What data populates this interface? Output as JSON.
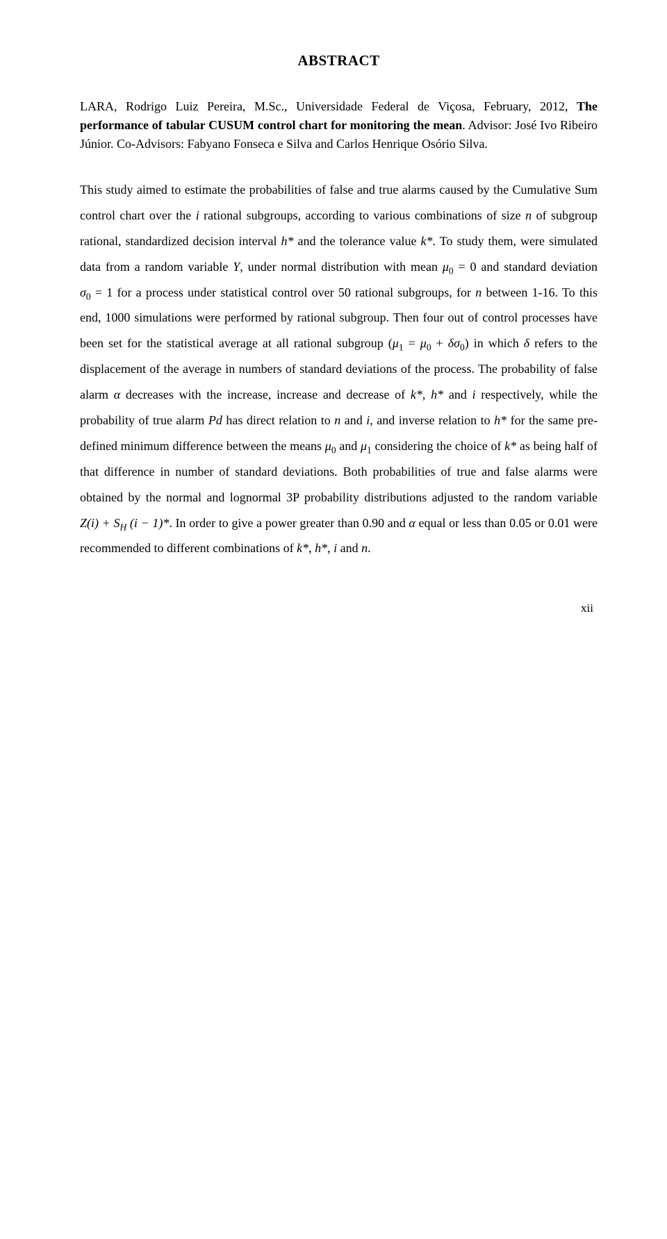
{
  "title": "ABSTRACT",
  "citation": {
    "author": "LARA, Rodrigo Luiz Pereira, M.Sc., Universidade Federal de Viçosa, February, 2012, ",
    "work_title": "The performance of tabular CUSUM control chart for monitoring the mean",
    "advisors": ". Advisor: José Ivo Ribeiro Júnior. Co-Advisors: Fabyano Fonseca e Silva and Carlos Henrique Osório Silva."
  },
  "para": {
    "t1": "This study aimed to estimate the probabilities of false and true alarms caused by the Cumulative Sum control chart over the ",
    "i": "i",
    "t2": " rational subgroups, according to various combinations of size ",
    "n": "n",
    "t3": " of subgroup rational, standardized decision interval ",
    "hstar": "h*",
    "t4": " and the tolerance value ",
    "kstar": "k*",
    "t5": ". To study them, were simulated data from a random variable ",
    "Y": "Y",
    "t6": ", under normal distribution with mean ",
    "mu0_eq": "μ",
    "mu0_sub": "0",
    "mu0_rhs": " = 0",
    "t7": " and standard deviation ",
    "sig0_eq": "σ",
    "sig0_sub": "0",
    "sig0_rhs": " = 1",
    "t8": " for a process under statistical control over 50 rational subgroups, for ",
    "t9": " between 1-16. To this end, 1000 simulations were performed by rational subgroup. Then four out of control processes have been set for the statistical average at all rational subgroup (",
    "mu1": "μ",
    "mu1_sub": "1",
    "eq": " = ",
    "mu0b": "μ",
    "mu0b_sub": "0",
    "plus": " + ",
    "delta_sig": "δσ",
    "delta_sig_sub": "0",
    "t10": ") in which ",
    "delta": "δ",
    "t11": " refers to the displacement of the average in numbers of standard deviations of the process. The probability of false alarm ",
    "alpha": "α",
    "t12": " decreases with the increase, increase and decrease of  ",
    "t13": " and ",
    "t14": " respectively, while the probability of true alarm ",
    "Pd": "Pd",
    "t15": " has direct relation to ",
    "t16": ", and inverse relation to ",
    "t17": " for the same pre-defined minimum difference between the means ",
    "t18": " considering the choice of ",
    "t19": " as being half of that difference in number of standard deviations. Both probabilities of true and false alarms were obtained by the normal and lognormal 3P probability distributions adjusted to the random variable ",
    "Zexpr_a": "Z(i) + S",
    "Zexpr_sub": "H",
    "Zexpr_b": " (i − 1)*",
    "t20": ". In order to give a power greater than 0.90 and ",
    "t21": " equal or less than 0.05 or 0.01 were recommended to different combinations of ",
    "comma": ", ",
    "and": " and ",
    "period": "."
  },
  "page_number": "xii"
}
